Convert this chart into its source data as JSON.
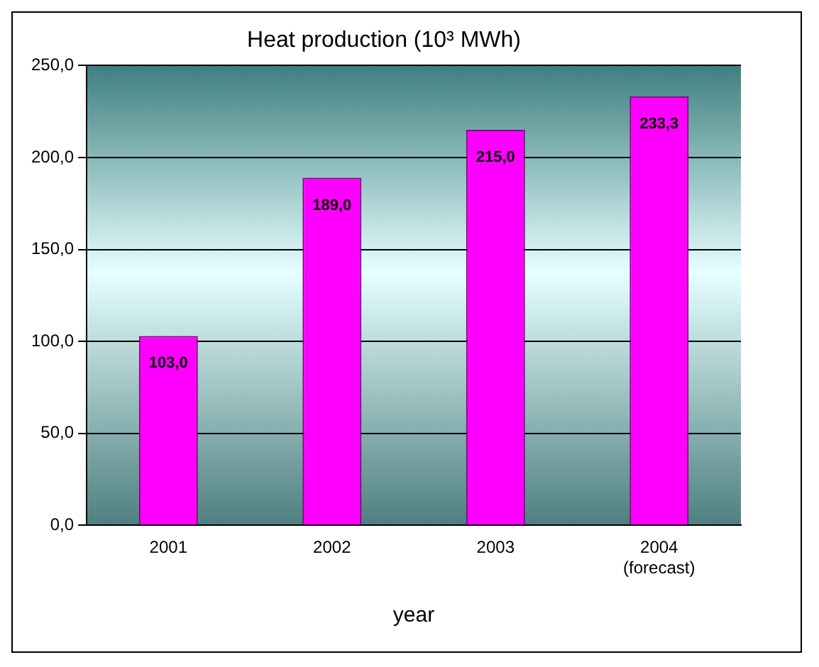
{
  "chart_data": {
    "type": "bar",
    "title": "Heat production (10³ MWh)",
    "xlabel": "year",
    "categories": [
      "2001",
      "2002",
      "2003",
      "2004 (forecast)"
    ],
    "values": [
      103.0,
      189.0,
      215.0,
      233.3
    ],
    "color": "#ff00ff",
    "value_labels": [
      "103,0",
      "189,0",
      "215,0",
      "233,3"
    ],
    "ylim": [
      0,
      250
    ],
    "yticks": [
      {
        "value": 0,
        "label": "0,0"
      },
      {
        "value": 50,
        "label": "50,0"
      },
      {
        "value": 100,
        "label": "100,0"
      },
      {
        "value": 150,
        "label": "150,0"
      },
      {
        "value": 200,
        "label": "200,0"
      },
      {
        "value": 250,
        "label": "250,0"
      }
    ],
    "grid": "y",
    "legend": false
  }
}
